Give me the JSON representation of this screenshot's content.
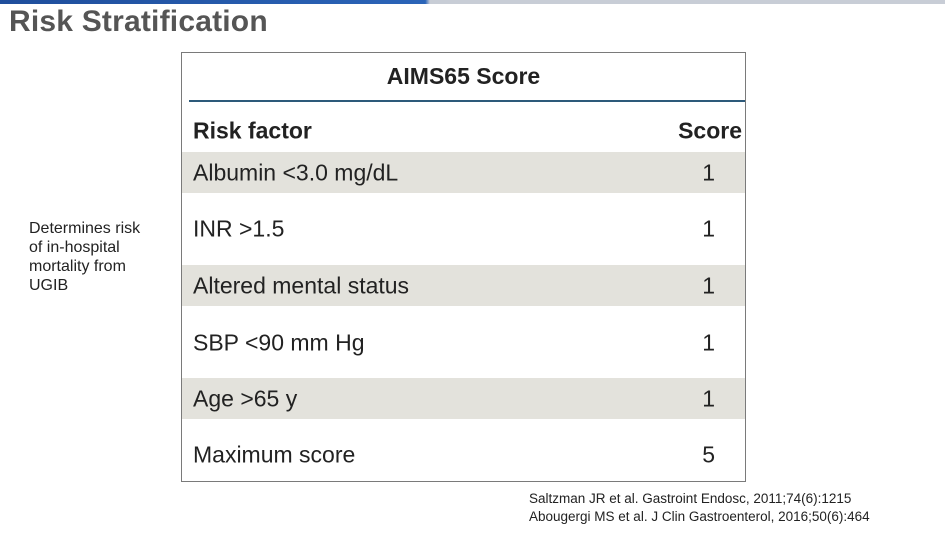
{
  "slide": {
    "title": "Risk Stratification",
    "side_note": "Determines risk of in-hospital mortality from UGIB"
  },
  "table": {
    "title": "AIMS65 Score",
    "headers": {
      "factor": "Risk factor",
      "score": "Score"
    },
    "rows": [
      {
        "factor": "Albumin <3.0 mg/dL",
        "score": "1"
      },
      {
        "factor": "INR >1.5",
        "score": "1"
      },
      {
        "factor": "Altered mental status",
        "score": "1"
      },
      {
        "factor": "SBP <90 mm Hg",
        "score": "1"
      },
      {
        "factor": "Age >65 y",
        "score": "1"
      },
      {
        "factor": "Maximum score",
        "score": "5"
      }
    ]
  },
  "references": [
    "Saltzman JR et al. Gastroint Endosc, 2011;74(6):1215",
    "Abougergi MS et al. J Clin Gastroenterol, 2016;50(6):464"
  ],
  "colors": {
    "title_gray": "#555555",
    "row_shade": "#e3e2dc",
    "rule": "#2d5a7a",
    "top_bar_blue": "#1f4e9c"
  }
}
